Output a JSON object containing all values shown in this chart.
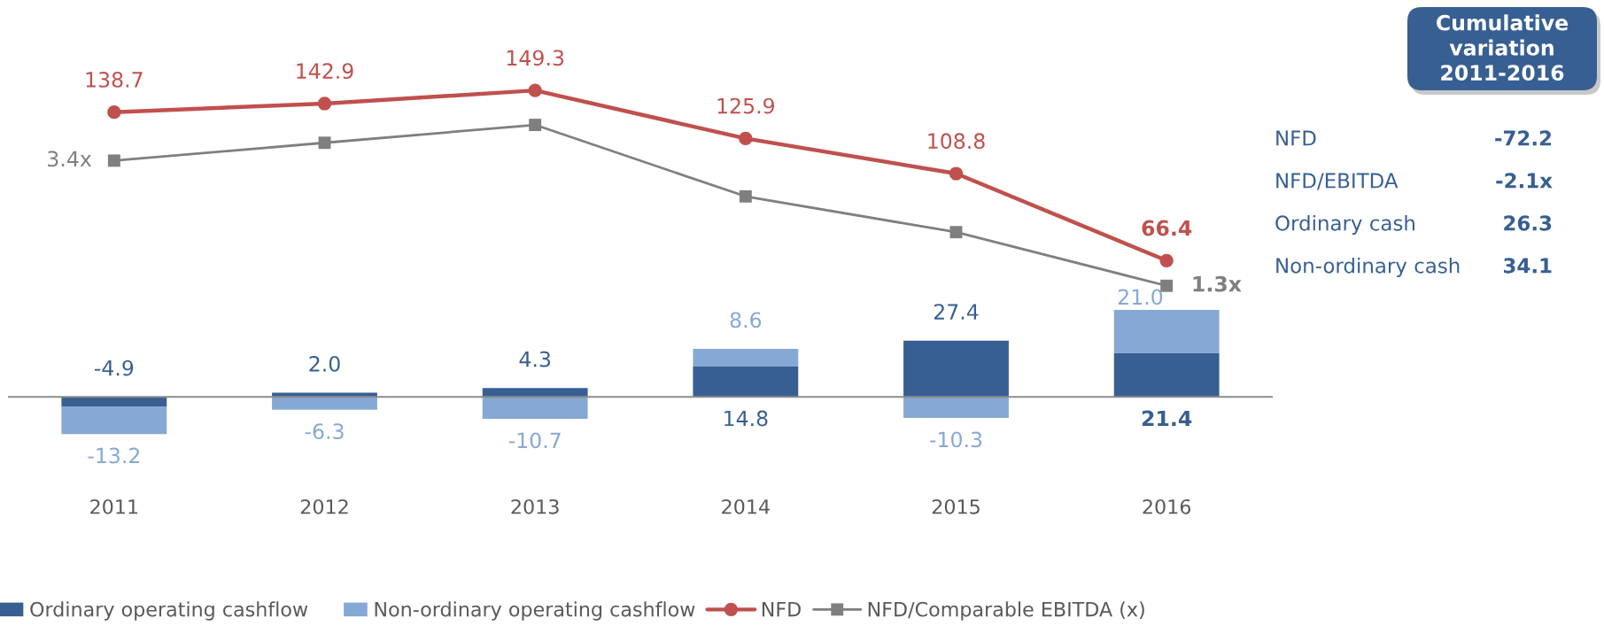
{
  "chart_data": [
    {
      "type": "bar",
      "stacked": true,
      "categories": [
        "2011",
        "2012",
        "2013",
        "2014",
        "2015",
        "2016"
      ],
      "series": [
        {
          "name": "Ordinary operating cashflow",
          "type": "bar",
          "color": "#375F92",
          "values": [
            -4.9,
            2.0,
            4.3,
            14.8,
            27.4,
            21.4
          ],
          "value_labels": [
            "-4.9",
            "2.0",
            "4.3",
            "14.8",
            "27.4",
            "21.4"
          ]
        },
        {
          "name": "Non-ordinary operating cashflow",
          "type": "bar",
          "color": "#86A8D4",
          "values": [
            -13.2,
            -6.3,
            -10.7,
            8.6,
            -10.3,
            21.0
          ],
          "value_labels": [
            "-13.2",
            "-6.3",
            "-10.7",
            "8.6",
            "-10.3",
            "21.0"
          ]
        },
        {
          "name": "NFD",
          "type": "line",
          "color": "#C0504D",
          "marker": "circle",
          "values": [
            138.7,
            142.9,
            149.3,
            125.9,
            108.8,
            66.4
          ]
        },
        {
          "name": "NFD/Comparable EBITDA (x)",
          "type": "line",
          "axis": "y2",
          "color": "#7F7F7F",
          "marker": "square",
          "values": [
            3.4,
            3.7,
            4.0,
            2.8,
            2.2,
            1.3
          ],
          "value_labels": [
            "3.4x",
            null,
            null,
            null,
            null,
            "1.3x"
          ]
        }
      ],
      "data_labels": true,
      "legend": "bottom",
      "tick_labels": "x"
    },
    {
      "type": "other",
      "title": "Cumulative\nvariation\n2011-2016",
      "annotations": [
        "NFD",
        "-72.2",
        "NFD/EBITDA",
        "-2.1x",
        "Ordinary cash",
        "26.3",
        "Non-ordinary cash",
        "34.1"
      ]
    }
  ]
}
